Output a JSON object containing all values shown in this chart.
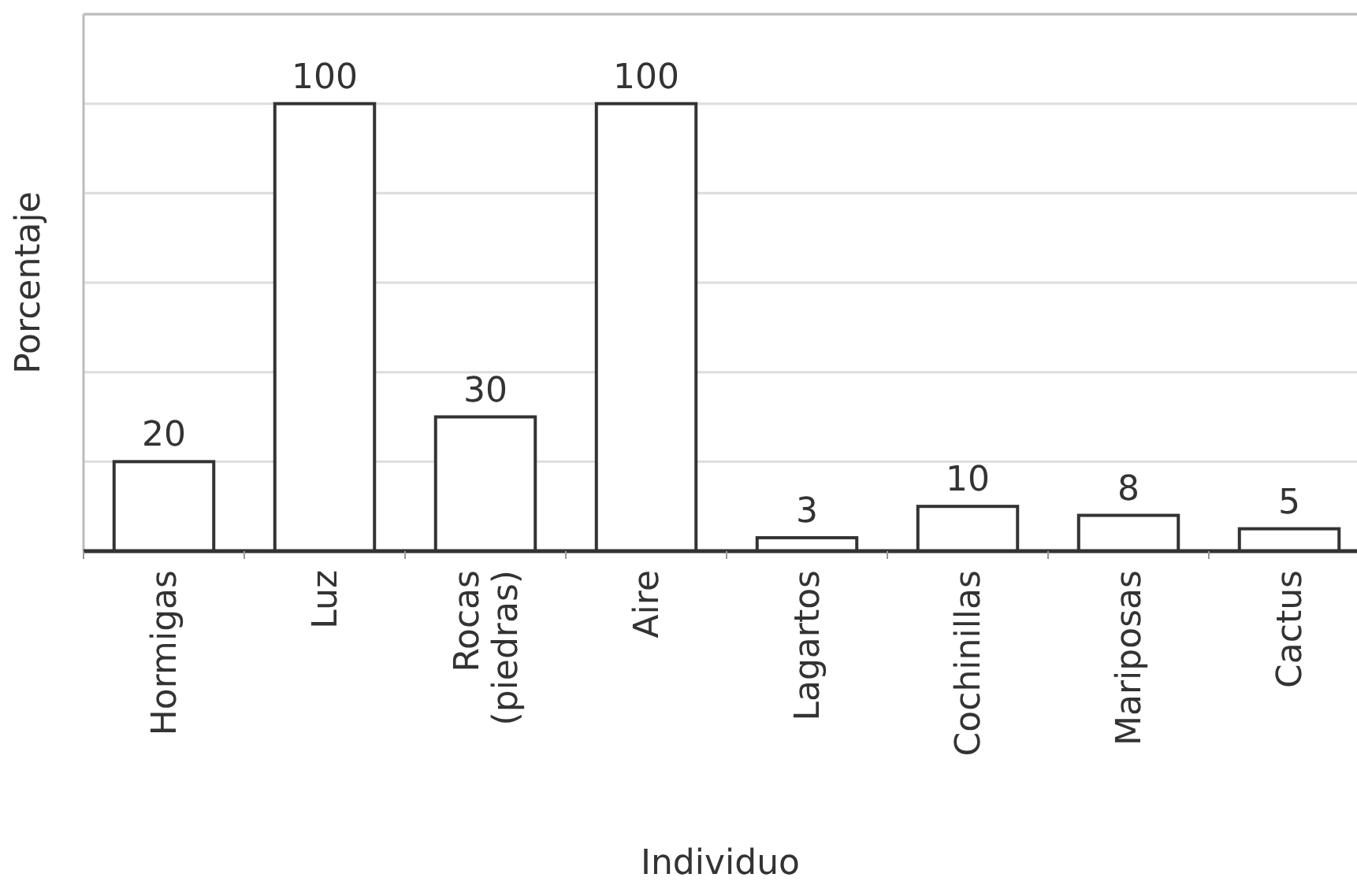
{
  "chart_data": {
    "type": "bar",
    "xlabel": "Individuo",
    "ylabel": "Porcentaje",
    "categories": [
      "Hormigas",
      "Luz",
      "Rocas\n(piedras)",
      "Aire",
      "Lagartos",
      "Cochinillas",
      "Mariposas",
      "Cactus"
    ],
    "values": [
      20,
      100,
      30,
      100,
      3,
      10,
      8,
      5
    ],
    "color": "#ffffff",
    "data_labels": true,
    "ylim": [
      0,
      120
    ],
    "yticks": [
      {
        "value": 0,
        "label": null
      },
      {
        "value": 20,
        "label": null
      },
      {
        "value": 40,
        "label": null
      },
      {
        "value": 60,
        "label": null
      },
      {
        "value": 80,
        "label": null
      },
      {
        "value": 100,
        "label": null
      },
      {
        "value": 120,
        "label": null
      }
    ],
    "grid": "y",
    "tick_labels": "x"
  }
}
